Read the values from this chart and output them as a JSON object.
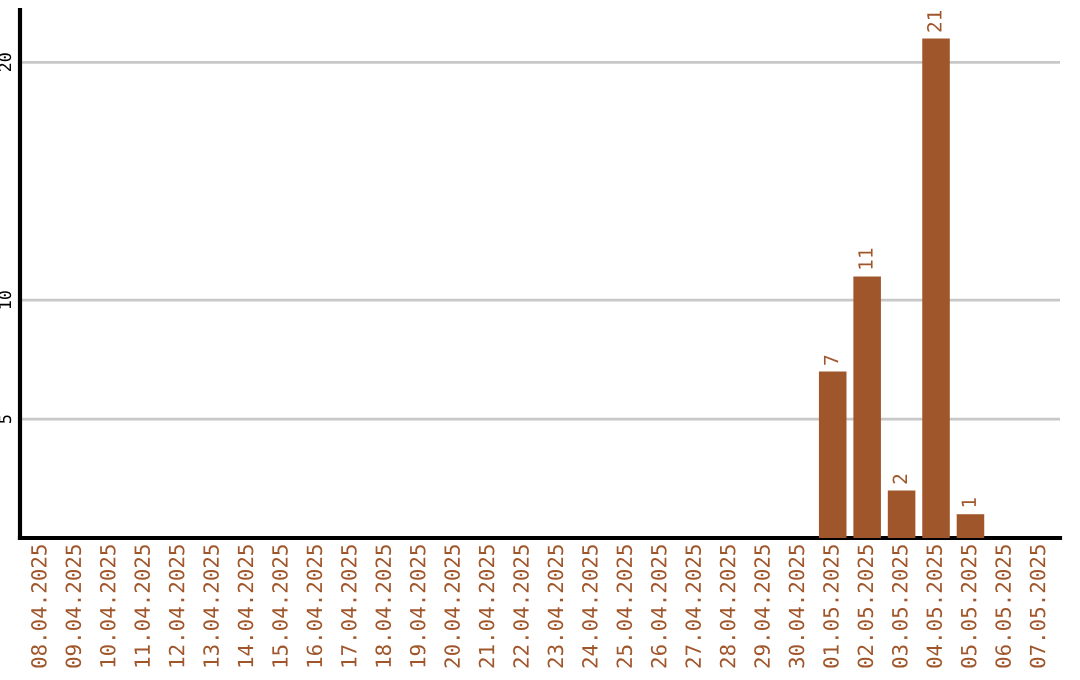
{
  "chart_data": {
    "type": "bar",
    "categories": [
      "08.04.2025",
      "09.04.2025",
      "10.04.2025",
      "11.04.2025",
      "12.04.2025",
      "13.04.2025",
      "14.04.2025",
      "15.04.2025",
      "16.04.2025",
      "17.04.2025",
      "18.04.2025",
      "19.04.2025",
      "20.04.2025",
      "21.04.2025",
      "22.04.2025",
      "23.04.2025",
      "24.04.2025",
      "25.04.2025",
      "26.04.2025",
      "27.04.2025",
      "28.04.2025",
      "29.04.2025",
      "30.04.2025",
      "01.05.2025",
      "02.05.2025",
      "03.05.2025",
      "04.05.2025",
      "05.05.2025",
      "06.05.2025",
      "07.05.2025"
    ],
    "values": [
      0,
      0,
      0,
      0,
      0,
      0,
      0,
      0,
      0,
      0,
      0,
      0,
      0,
      0,
      0,
      0,
      0,
      0,
      0,
      0,
      0,
      0,
      0,
      7,
      11,
      2,
      21,
      1,
      0,
      0
    ],
    "value_labels": [
      null,
      null,
      null,
      null,
      null,
      null,
      null,
      null,
      null,
      null,
      null,
      null,
      null,
      null,
      null,
      null,
      null,
      null,
      null,
      null,
      null,
      null,
      null,
      "7",
      "11",
      "2",
      "21",
      "1",
      null,
      null
    ],
    "color": "#a0562b",
    "ylim": [
      0,
      22.2
    ],
    "yticks": [
      5,
      10,
      20
    ],
    "grid": "y",
    "legend": false
  }
}
